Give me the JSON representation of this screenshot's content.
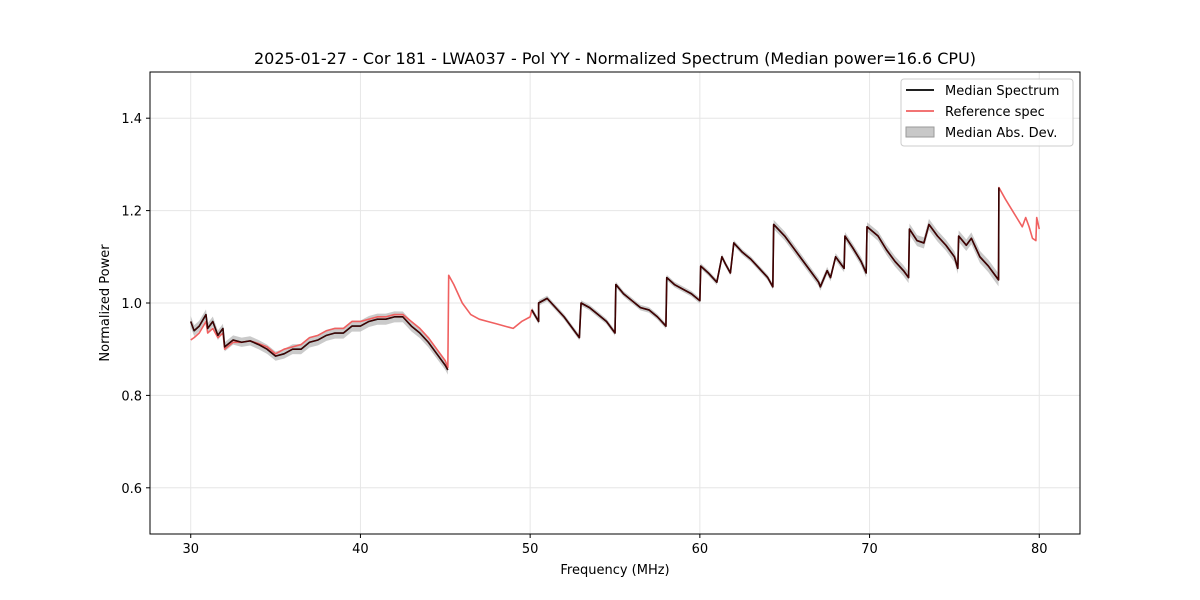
{
  "chart_data": {
    "type": "line",
    "title": "2025-01-27 - Cor 181 - LWA037 - Pol YY - Normalized Spectrum (Median power=16.6 CPU)",
    "xlabel": "Frequency (MHz)",
    "ylabel": "Normalized Power",
    "xlim": [
      27.6,
      82.4
    ],
    "ylim": [
      0.5,
      1.5
    ],
    "xticks": [
      30,
      40,
      50,
      60,
      70,
      80
    ],
    "yticks": [
      0.6,
      0.8,
      1.0,
      1.2,
      1.4
    ],
    "xtick_labels": [
      "30",
      "40",
      "50",
      "60",
      "70",
      "80"
    ],
    "ytick_labels": [
      "0.6",
      "0.8",
      "1.0",
      "1.2",
      "1.4"
    ],
    "grid": true,
    "legend_position": "top-right",
    "legend": {
      "median": "Median Spectrum",
      "reference": "Reference spec",
      "mad": "Median Abs. Dev."
    },
    "colors": {
      "median": "#000000",
      "reference": "#f06060",
      "mad_fill": "#b8b8b8",
      "grid": "#e6e6e6"
    },
    "median_segments": [
      {
        "x": [
          30.0,
          30.2,
          30.5,
          30.9,
          31.0,
          31.3,
          31.6,
          31.9,
          32.0,
          32.5,
          33.0,
          33.5,
          34.0,
          34.5,
          35.0,
          35.5,
          36.0,
          36.5,
          37.0,
          37.5,
          38.0,
          38.5,
          39.0,
          39.5,
          40.0,
          40.5,
          41.0,
          41.5,
          42.0,
          42.5,
          43.0,
          43.5,
          44.0,
          44.5,
          45.0,
          45.15
        ],
        "y": [
          0.96,
          0.94,
          0.95,
          0.975,
          0.945,
          0.96,
          0.93,
          0.945,
          0.905,
          0.92,
          0.915,
          0.918,
          0.91,
          0.9,
          0.885,
          0.89,
          0.9,
          0.9,
          0.915,
          0.92,
          0.93,
          0.935,
          0.935,
          0.95,
          0.95,
          0.96,
          0.965,
          0.965,
          0.97,
          0.97,
          0.95,
          0.935,
          0.915,
          0.89,
          0.865,
          0.855
        ]
      },
      {
        "x": [
          50.1,
          50.5,
          50.5,
          51.0,
          51.5,
          52.0,
          52.5,
          52.9,
          53.0,
          53.5,
          54.0,
          54.5,
          55.0,
          55.05,
          55.5,
          56.0,
          56.5,
          57.0,
          57.5,
          58.0,
          58.05,
          58.5,
          59.0,
          59.5,
          60.0,
          60.05,
          60.5,
          61.0,
          61.3,
          61.5,
          61.8,
          62.0,
          62.5,
          63.0,
          63.5,
          64.0,
          64.3,
          64.35,
          65.0,
          65.5,
          66.0,
          66.5,
          67.0,
          67.1,
          67.5,
          67.7,
          68.0,
          68.5,
          68.55,
          69.0,
          69.5,
          69.8,
          69.85,
          70.5,
          71.0,
          71.5,
          72.0,
          72.3,
          72.35,
          72.8,
          73.2,
          73.5,
          74.0,
          74.5,
          75.0,
          75.2,
          75.25,
          75.7,
          76.0,
          76.5,
          77.0,
          77.3,
          77.6,
          77.62
        ],
        "y": [
          0.985,
          0.96,
          1.0,
          1.01,
          0.99,
          0.97,
          0.945,
          0.925,
          1.0,
          0.99,
          0.975,
          0.96,
          0.935,
          1.04,
          1.02,
          1.005,
          0.99,
          0.985,
          0.97,
          0.95,
          1.055,
          1.04,
          1.03,
          1.02,
          1.005,
          1.08,
          1.065,
          1.045,
          1.1,
          1.085,
          1.065,
          1.13,
          1.11,
          1.095,
          1.075,
          1.055,
          1.035,
          1.17,
          1.145,
          1.12,
          1.095,
          1.07,
          1.045,
          1.035,
          1.07,
          1.055,
          1.1,
          1.075,
          1.145,
          1.12,
          1.09,
          1.065,
          1.165,
          1.145,
          1.115,
          1.09,
          1.07,
          1.055,
          1.16,
          1.135,
          1.13,
          1.17,
          1.145,
          1.125,
          1.1,
          1.075,
          1.145,
          1.125,
          1.14,
          1.1,
          1.08,
          1.065,
          1.05,
          1.25
        ]
      }
    ],
    "reference": {
      "x": [
        30.0,
        30.2,
        30.5,
        30.9,
        31.0,
        31.3,
        31.6,
        31.9,
        32.0,
        32.5,
        33.0,
        33.5,
        34.0,
        34.5,
        35.0,
        35.5,
        36.0,
        36.5,
        37.0,
        37.5,
        38.0,
        38.5,
        39.0,
        39.5,
        40.0,
        40.5,
        41.0,
        41.5,
        42.0,
        42.5,
        43.0,
        43.5,
        44.0,
        44.5,
        45.0,
        45.15,
        45.2,
        45.5,
        46.0,
        46.5,
        47.0,
        47.5,
        48.0,
        48.5,
        49.0,
        49.5,
        50.0,
        50.1,
        50.5,
        50.5,
        51.0,
        51.5,
        52.0,
        52.5,
        52.9,
        53.0,
        53.5,
        54.0,
        54.5,
        55.0,
        55.05,
        55.5,
        56.0,
        56.5,
        57.0,
        57.5,
        58.0,
        58.05,
        58.5,
        59.0,
        59.5,
        60.0,
        60.05,
        60.5,
        61.0,
        61.3,
        61.5,
        61.8,
        62.0,
        62.5,
        63.0,
        63.5,
        64.0,
        64.3,
        64.35,
        65.0,
        65.5,
        66.0,
        66.5,
        67.0,
        67.1,
        67.5,
        67.7,
        68.0,
        68.5,
        68.55,
        69.0,
        69.5,
        69.8,
        69.85,
        70.5,
        71.0,
        71.5,
        72.0,
        72.3,
        72.35,
        72.8,
        73.2,
        73.5,
        74.0,
        74.5,
        75.0,
        75.2,
        75.25,
        75.7,
        76.0,
        76.5,
        77.0,
        77.3,
        77.6,
        77.62,
        78.0,
        78.5,
        79.0,
        79.2,
        79.4,
        79.6,
        79.8,
        79.85,
        80.0
      ],
      "y": [
        0.92,
        0.925,
        0.935,
        0.96,
        0.935,
        0.945,
        0.925,
        0.935,
        0.9,
        0.915,
        0.915,
        0.918,
        0.912,
        0.905,
        0.89,
        0.9,
        0.905,
        0.91,
        0.925,
        0.93,
        0.94,
        0.945,
        0.945,
        0.96,
        0.96,
        0.965,
        0.97,
        0.97,
        0.975,
        0.975,
        0.96,
        0.945,
        0.925,
        0.9,
        0.875,
        0.86,
        1.06,
        1.04,
        1.0,
        0.975,
        0.965,
        0.96,
        0.955,
        0.95,
        0.945,
        0.96,
        0.97,
        0.985,
        0.96,
        1.0,
        1.01,
        0.99,
        0.97,
        0.945,
        0.925,
        1.0,
        0.99,
        0.975,
        0.96,
        0.935,
        1.04,
        1.02,
        1.005,
        0.99,
        0.985,
        0.97,
        0.95,
        1.055,
        1.04,
        1.03,
        1.02,
        1.005,
        1.08,
        1.065,
        1.045,
        1.1,
        1.085,
        1.065,
        1.13,
        1.11,
        1.095,
        1.075,
        1.055,
        1.035,
        1.17,
        1.145,
        1.12,
        1.095,
        1.07,
        1.045,
        1.035,
        1.07,
        1.055,
        1.1,
        1.075,
        1.145,
        1.12,
        1.09,
        1.065,
        1.165,
        1.145,
        1.115,
        1.09,
        1.07,
        1.055,
        1.16,
        1.135,
        1.13,
        1.17,
        1.145,
        1.125,
        1.1,
        1.075,
        1.145,
        1.125,
        1.14,
        1.1,
        1.08,
        1.065,
        1.05,
        1.25,
        1.225,
        1.195,
        1.165,
        1.185,
        1.165,
        1.14,
        1.135,
        1.185,
        1.16
      ]
    },
    "mad": {
      "x": [
        30.0,
        32.0,
        35.0,
        38.0,
        42.0,
        45.15,
        50.1,
        55.0,
        60.0,
        64.3,
        64.35,
        68.0,
        70.0,
        72.3,
        72.35,
        75.0,
        77.6
      ],
      "half_width": [
        0.012,
        0.01,
        0.01,
        0.012,
        0.012,
        0.01,
        0.006,
        0.006,
        0.006,
        0.006,
        0.01,
        0.008,
        0.01,
        0.012,
        0.012,
        0.012,
        0.014
      ]
    }
  }
}
